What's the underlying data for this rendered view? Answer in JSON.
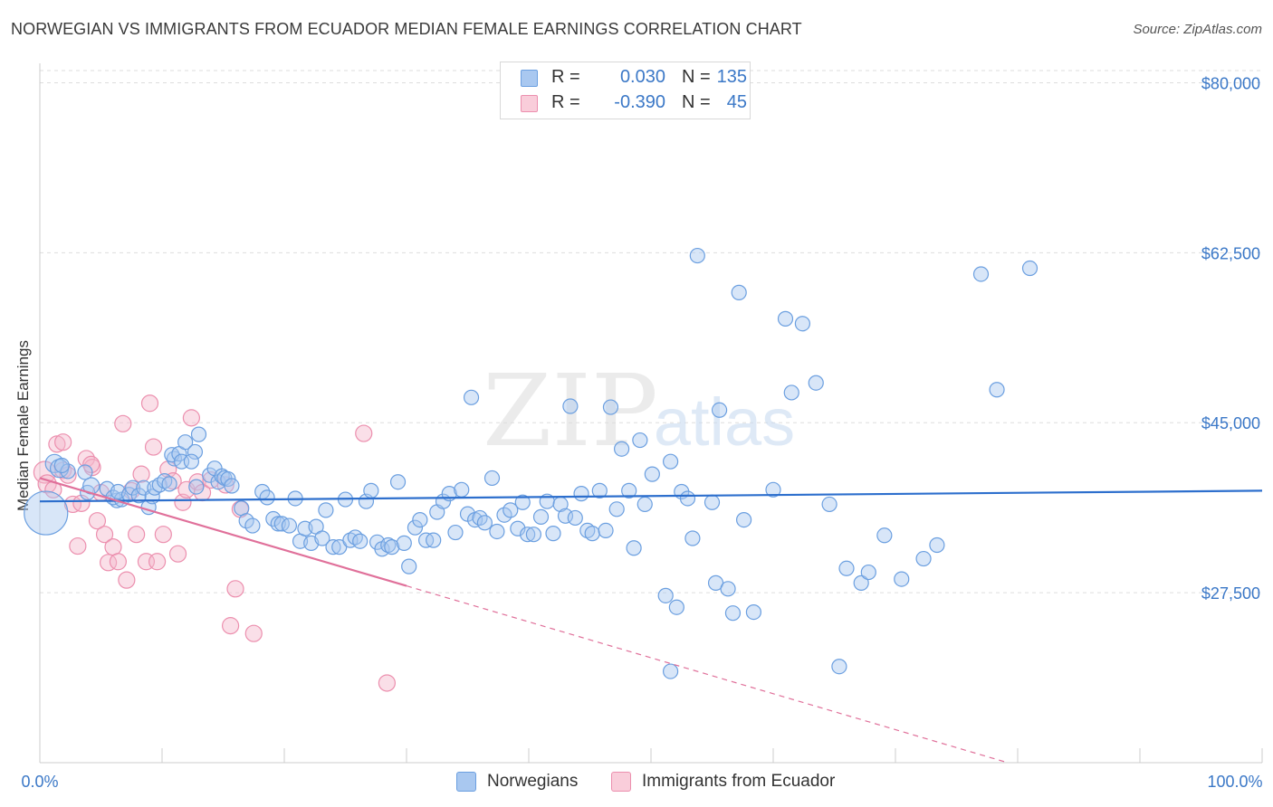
{
  "title": "NORWEGIAN VS IMMIGRANTS FROM ECUADOR MEDIAN FEMALE EARNINGS CORRELATION CHART",
  "source": "Source: ZipAtlas.com",
  "watermark": {
    "zip": "ZIP",
    "atlas": "atlas"
  },
  "colors": {
    "blue": "#3b78c7",
    "blue_line": "#2d6fcd",
    "blue_fill": "#a9c8f0",
    "blue_stroke": "#6b9fe0",
    "pink_line": "#e0709a",
    "pink_fill": "#f5b9cb",
    "pink_stroke": "#ec8fae",
    "grid": "#dddddd"
  },
  "legend_top": [
    {
      "r_label": "R =",
      "r_value": "0.030",
      "n_label": "N =",
      "n_value": "135",
      "color": "blue"
    },
    {
      "r_label": "R =",
      "r_value": "-0.390",
      "n_label": "N =",
      "n_value": "45",
      "color": "pink"
    }
  ],
  "legend_bottom": [
    {
      "label": "Norwegians",
      "color": "blue"
    },
    {
      "label": "Immigrants from Ecuador",
      "color": "pink"
    }
  ],
  "chart_data": {
    "type": "scatter",
    "title": "NORWEGIAN VS IMMIGRANTS FROM ECUADOR MEDIAN FEMALE EARNINGS CORRELATION CHART",
    "xlabel": "",
    "ylabel": "Median Female Earnings",
    "xlim": [
      0,
      100
    ],
    "ylim": [
      10000,
      82000
    ],
    "x_tick_labels": [
      "0.0%",
      "100.0%"
    ],
    "y_ticks": [
      27500,
      45000,
      62500,
      80000
    ],
    "y_tick_labels": [
      "$27,500",
      "$45,000",
      "$62,500",
      "$80,000"
    ],
    "grid": true,
    "legend_position": "top-center",
    "series": [
      {
        "name": "Norwegians",
        "color": "blue",
        "r": 0.03,
        "n": 135,
        "trend": {
          "x": [
            0,
            100
          ],
          "y": [
            36900,
            38000
          ],
          "style": "solid"
        },
        "points": [
          [
            0.5,
            35700,
            24
          ],
          [
            1.2,
            40800,
            10
          ],
          [
            1.6,
            40300,
            10
          ],
          [
            2.3,
            40000,
            8
          ],
          [
            1.8,
            40600,
            8
          ],
          [
            3.7,
            39900,
            8
          ],
          [
            3.9,
            37800,
            8
          ],
          [
            4.2,
            38500,
            9
          ],
          [
            5.5,
            38200,
            8
          ],
          [
            6.3,
            37000,
            8
          ],
          [
            6.0,
            37300,
            8
          ],
          [
            6.7,
            37100,
            8
          ],
          [
            6.4,
            37900,
            8
          ],
          [
            7.3,
            37600,
            8
          ],
          [
            7.6,
            38300,
            8
          ],
          [
            8.1,
            37500,
            8
          ],
          [
            8.5,
            38300,
            8
          ],
          [
            8.9,
            36300,
            8
          ],
          [
            9.2,
            37400,
            8
          ],
          [
            9.4,
            38300,
            8
          ],
          [
            9.8,
            38600,
            8
          ],
          [
            10.2,
            39000,
            8
          ],
          [
            10.6,
            38700,
            8
          ],
          [
            11.0,
            41300,
            8
          ],
          [
            10.8,
            41700,
            8
          ],
          [
            11.4,
            41800,
            8
          ],
          [
            11.6,
            41000,
            8
          ],
          [
            11.9,
            43000,
            8
          ],
          [
            12.7,
            42000,
            8
          ],
          [
            12.4,
            41000,
            8
          ],
          [
            13.0,
            43800,
            8
          ],
          [
            12.8,
            38400,
            8
          ],
          [
            13.9,
            39600,
            8
          ],
          [
            14.3,
            40300,
            8
          ],
          [
            14.6,
            38900,
            8
          ],
          [
            14.9,
            39500,
            8
          ],
          [
            15.1,
            39300,
            8
          ],
          [
            15.4,
            39200,
            8
          ],
          [
            15.7,
            38500,
            8
          ],
          [
            16.5,
            36200,
            8
          ],
          [
            16.9,
            34900,
            8
          ],
          [
            17.4,
            34400,
            8
          ],
          [
            18.2,
            37900,
            8
          ],
          [
            18.6,
            37300,
            8
          ],
          [
            19.1,
            35100,
            8
          ],
          [
            19.5,
            34600,
            8
          ],
          [
            19.8,
            34600,
            8
          ],
          [
            20.4,
            34400,
            8
          ],
          [
            20.9,
            37200,
            8
          ],
          [
            21.3,
            32800,
            8
          ],
          [
            21.7,
            34100,
            8
          ],
          [
            22.2,
            32600,
            8
          ],
          [
            22.6,
            34300,
            8
          ],
          [
            23.1,
            33100,
            8
          ],
          [
            23.4,
            36000,
            8
          ],
          [
            24.0,
            32200,
            8
          ],
          [
            24.5,
            32200,
            8
          ],
          [
            25.0,
            37100,
            8
          ],
          [
            25.4,
            32900,
            8
          ],
          [
            25.8,
            33200,
            8
          ],
          [
            26.2,
            32800,
            8
          ],
          [
            26.7,
            36900,
            8
          ],
          [
            27.1,
            38000,
            8
          ],
          [
            27.6,
            32700,
            8
          ],
          [
            28.0,
            32000,
            8
          ],
          [
            28.5,
            32400,
            8
          ],
          [
            28.8,
            32200,
            8
          ],
          [
            29.3,
            38900,
            8
          ],
          [
            29.8,
            32600,
            8
          ],
          [
            30.2,
            30200,
            8
          ],
          [
            30.7,
            34200,
            8
          ],
          [
            31.1,
            35000,
            8
          ],
          [
            31.6,
            32900,
            8
          ],
          [
            32.2,
            32900,
            8
          ],
          [
            32.5,
            35800,
            8
          ],
          [
            33.0,
            36900,
            8
          ],
          [
            33.5,
            37700,
            8
          ],
          [
            34.0,
            33700,
            8
          ],
          [
            34.5,
            38100,
            8
          ],
          [
            35.0,
            35600,
            8
          ],
          [
            35.3,
            47600,
            8
          ],
          [
            35.6,
            35000,
            8
          ],
          [
            36.0,
            35200,
            8
          ],
          [
            36.4,
            34700,
            8
          ],
          [
            37.0,
            39300,
            8
          ],
          [
            37.4,
            33800,
            8
          ],
          [
            38.0,
            35500,
            8
          ],
          [
            38.5,
            36000,
            8
          ],
          [
            39.1,
            34100,
            8
          ],
          [
            39.5,
            36800,
            8
          ],
          [
            39.9,
            33500,
            8
          ],
          [
            40.4,
            33500,
            8
          ],
          [
            41.0,
            35300,
            8
          ],
          [
            41.5,
            36900,
            8
          ],
          [
            42.0,
            33600,
            8
          ],
          [
            42.6,
            36600,
            8
          ],
          [
            43.0,
            35400,
            8
          ],
          [
            43.4,
            46700,
            8
          ],
          [
            43.8,
            35200,
            8
          ],
          [
            44.3,
            37700,
            8
          ],
          [
            44.8,
            33900,
            8
          ],
          [
            45.2,
            33600,
            8
          ],
          [
            45.8,
            38000,
            8
          ],
          [
            46.3,
            33900,
            8
          ],
          [
            46.7,
            46600,
            8
          ],
          [
            47.2,
            36100,
            8
          ],
          [
            47.6,
            42300,
            8
          ],
          [
            48.2,
            38000,
            8
          ],
          [
            48.6,
            32100,
            8
          ],
          [
            49.1,
            43200,
            8
          ],
          [
            49.5,
            36600,
            8
          ],
          [
            50.1,
            39700,
            8
          ],
          [
            51.2,
            27200,
            8
          ],
          [
            51.6,
            41000,
            8
          ],
          [
            52.1,
            26000,
            8
          ],
          [
            52.5,
            37900,
            8
          ],
          [
            53.0,
            37200,
            8
          ],
          [
            53.4,
            33100,
            8
          ],
          [
            53.8,
            62200,
            8
          ],
          [
            55.0,
            36800,
            8
          ],
          [
            55.3,
            28500,
            8
          ],
          [
            55.6,
            46300,
            8
          ],
          [
            56.3,
            27900,
            8
          ],
          [
            56.7,
            25400,
            8
          ],
          [
            57.2,
            58400,
            8
          ],
          [
            57.6,
            35000,
            8
          ],
          [
            58.4,
            25500,
            8
          ],
          [
            60.0,
            38100,
            8
          ],
          [
            61.0,
            55700,
            8
          ],
          [
            61.5,
            48100,
            8
          ],
          [
            62.4,
            55200,
            8
          ],
          [
            63.5,
            49100,
            8
          ],
          [
            64.6,
            36600,
            8
          ],
          [
            65.4,
            19900,
            8
          ],
          [
            66.0,
            30000,
            8
          ],
          [
            67.2,
            28500,
            8
          ],
          [
            67.8,
            29600,
            8
          ],
          [
            69.1,
            33400,
            8
          ],
          [
            70.5,
            28900,
            8
          ],
          [
            72.3,
            31000,
            8
          ],
          [
            73.4,
            32400,
            8
          ],
          [
            77.0,
            60300,
            8
          ],
          [
            78.3,
            48400,
            8
          ],
          [
            81.0,
            60900,
            8
          ],
          [
            51.6,
            19400,
            8
          ]
        ]
      },
      {
        "name": "Immigrants from Ecuador",
        "color": "pink",
        "r": -0.39,
        "n": 45,
        "trend": {
          "x": [
            0,
            30
          ],
          "y": [
            39300,
            28200
          ],
          "style": "solid",
          "extension": {
            "x": [
              30,
              100
            ],
            "y": [
              28200,
              2300
            ],
            "style": "dashed"
          }
        },
        "points": [
          [
            0.4,
            39900,
            12
          ],
          [
            0.6,
            38700,
            10
          ],
          [
            1.1,
            38100,
            9
          ],
          [
            1.4,
            42800,
            9
          ],
          [
            1.9,
            40100,
            9
          ],
          [
            2.3,
            39600,
            9
          ],
          [
            2.7,
            36600,
            9
          ],
          [
            3.1,
            32300,
            9
          ],
          [
            3.4,
            36700,
            9
          ],
          [
            3.8,
            41300,
            9
          ],
          [
            4.3,
            40400,
            9
          ],
          [
            4.7,
            34900,
            9
          ],
          [
            5.0,
            37800,
            9
          ],
          [
            5.3,
            33500,
            9
          ],
          [
            5.6,
            30600,
            9
          ],
          [
            6.0,
            32200,
            9
          ],
          [
            6.4,
            30700,
            9
          ],
          [
            6.8,
            44900,
            9
          ],
          [
            7.1,
            28800,
            9
          ],
          [
            7.5,
            38000,
            9
          ],
          [
            7.9,
            33500,
            9
          ],
          [
            8.3,
            39700,
            9
          ],
          [
            8.7,
            30700,
            9
          ],
          [
            9.0,
            47000,
            9
          ],
          [
            9.3,
            42500,
            9
          ],
          [
            9.6,
            30700,
            9
          ],
          [
            10.1,
            33500,
            9
          ],
          [
            10.5,
            40200,
            9
          ],
          [
            10.9,
            39000,
            9
          ],
          [
            11.3,
            31500,
            9
          ],
          [
            11.7,
            36800,
            9
          ],
          [
            12.0,
            38100,
            9
          ],
          [
            12.4,
            45500,
            9
          ],
          [
            12.9,
            38900,
            9
          ],
          [
            13.3,
            37800,
            9
          ],
          [
            14.0,
            39100,
            9
          ],
          [
            15.2,
            38600,
            9
          ],
          [
            15.6,
            24100,
            9
          ],
          [
            16.0,
            27900,
            9
          ],
          [
            16.4,
            36100,
            9
          ],
          [
            17.5,
            23300,
            9
          ],
          [
            26.5,
            43900,
            9
          ],
          [
            28.4,
            18200,
            9
          ],
          [
            1.9,
            43000,
            9
          ],
          [
            4.2,
            40700,
            9
          ]
        ]
      }
    ]
  }
}
